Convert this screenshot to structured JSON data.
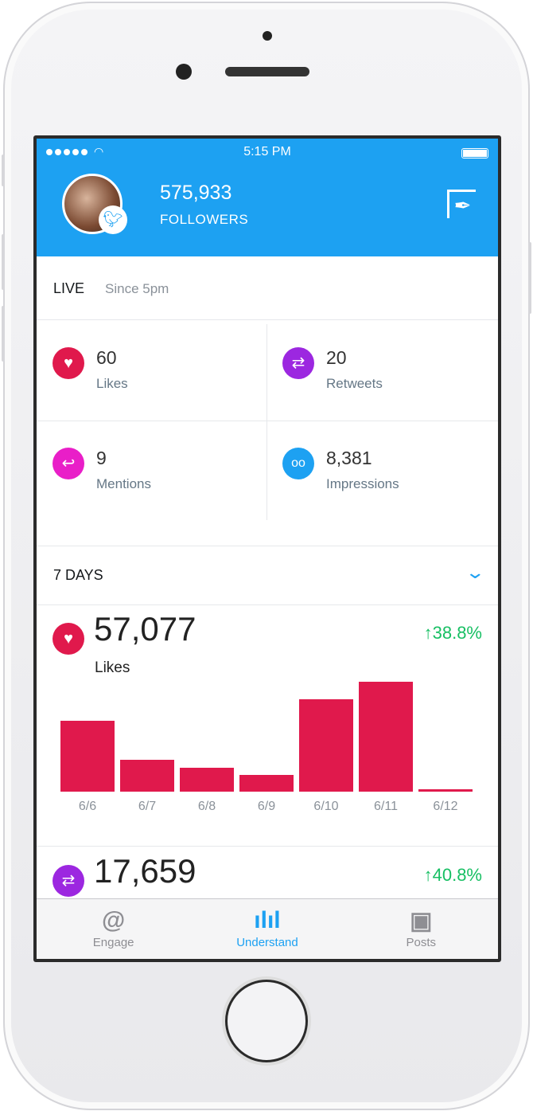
{
  "status_bar": {
    "time": "5:15 PM",
    "signal_icon": "signal-dots-icon",
    "wifi_icon": "wifi-icon",
    "battery_icon": "battery-icon"
  },
  "header": {
    "followers_count": "575,933",
    "followers_label": "FOLLOWERS",
    "compose_icon": "compose-quill-icon",
    "badge_icon": "twitter-bird-icon",
    "color": "#1da1f2"
  },
  "live": {
    "title": "LIVE",
    "since": "Since 5pm",
    "stats": [
      {
        "value": "60",
        "label": "Likes",
        "icon": "heart-icon",
        "color": "#e0194c"
      },
      {
        "value": "20",
        "label": "Retweets",
        "icon": "retweet-icon",
        "color": "#9c27e0"
      },
      {
        "value": "9",
        "label": "Mentions",
        "icon": "reply-icon",
        "color": "#e91ec8"
      },
      {
        "value": "8,381",
        "label": "Impressions",
        "icon": "glasses-icon",
        "color": "#1da1f2"
      }
    ]
  },
  "period": {
    "label": "7 DAYS",
    "dropdown_icon": "chevron-down-icon"
  },
  "metrics": [
    {
      "value": "57,077",
      "label": "Likes",
      "change": "38.8%",
      "direction": "up",
      "icon": "heart-icon",
      "color": "#e0194c"
    },
    {
      "value": "17,659",
      "change": "40.8%",
      "direction": "up",
      "icon": "retweet-icon",
      "color": "#9c27e0"
    }
  ],
  "chart_data": {
    "type": "bar",
    "categories": [
      "6/6",
      "6/7",
      "6/8",
      "6/9",
      "6/10",
      "6/11",
      "6/12"
    ],
    "values": [
      89,
      40,
      30,
      21,
      116,
      138,
      3
    ],
    "color": "#e0194c",
    "grid": false
  },
  "tabbar": {
    "tabs": [
      {
        "label": "Engage",
        "icon": "at-icon"
      },
      {
        "label": "Understand",
        "icon": "bar-chart-icon",
        "active": true
      },
      {
        "label": "Posts",
        "icon": "video-posts-icon"
      }
    ],
    "active_color": "#1da1f2"
  }
}
